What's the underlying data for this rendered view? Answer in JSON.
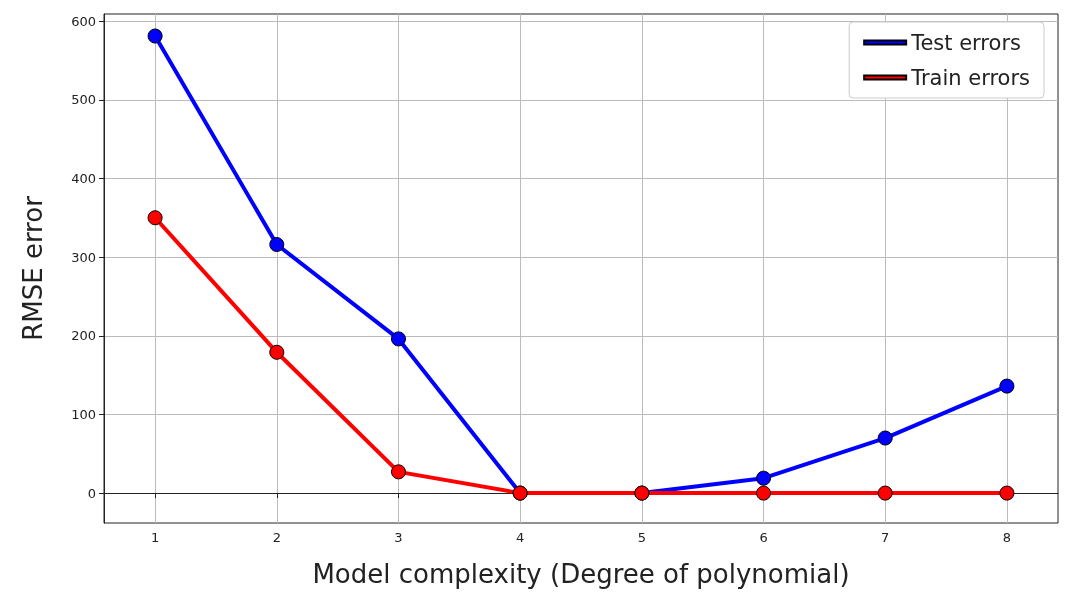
{
  "chart_data": {
    "type": "line",
    "xlabel": "Model complexity (Degree of polynomial)",
    "ylabel": "RMSE error",
    "x": [
      1,
      2,
      3,
      4,
      5,
      6,
      7,
      8
    ],
    "series": [
      {
        "name": "Test errors",
        "color": "#0000ff",
        "values": [
          581,
          316,
          196,
          0,
          0,
          19,
          70,
          136
        ]
      },
      {
        "name": "Train errors",
        "color": "#ff0000",
        "values": [
          350,
          179,
          27,
          0,
          0,
          0,
          0,
          0
        ]
      }
    ],
    "xlim": [
      0.58,
      8.42
    ],
    "xticks": [
      1,
      2,
      3,
      4,
      5,
      6,
      7,
      8
    ],
    "ylim": [
      -38,
      609
    ],
    "yticks": [
      0,
      100,
      200,
      300,
      400,
      500,
      600
    ],
    "grid": true,
    "legend": "top right",
    "marker": "circle",
    "line_style": "solid"
  }
}
